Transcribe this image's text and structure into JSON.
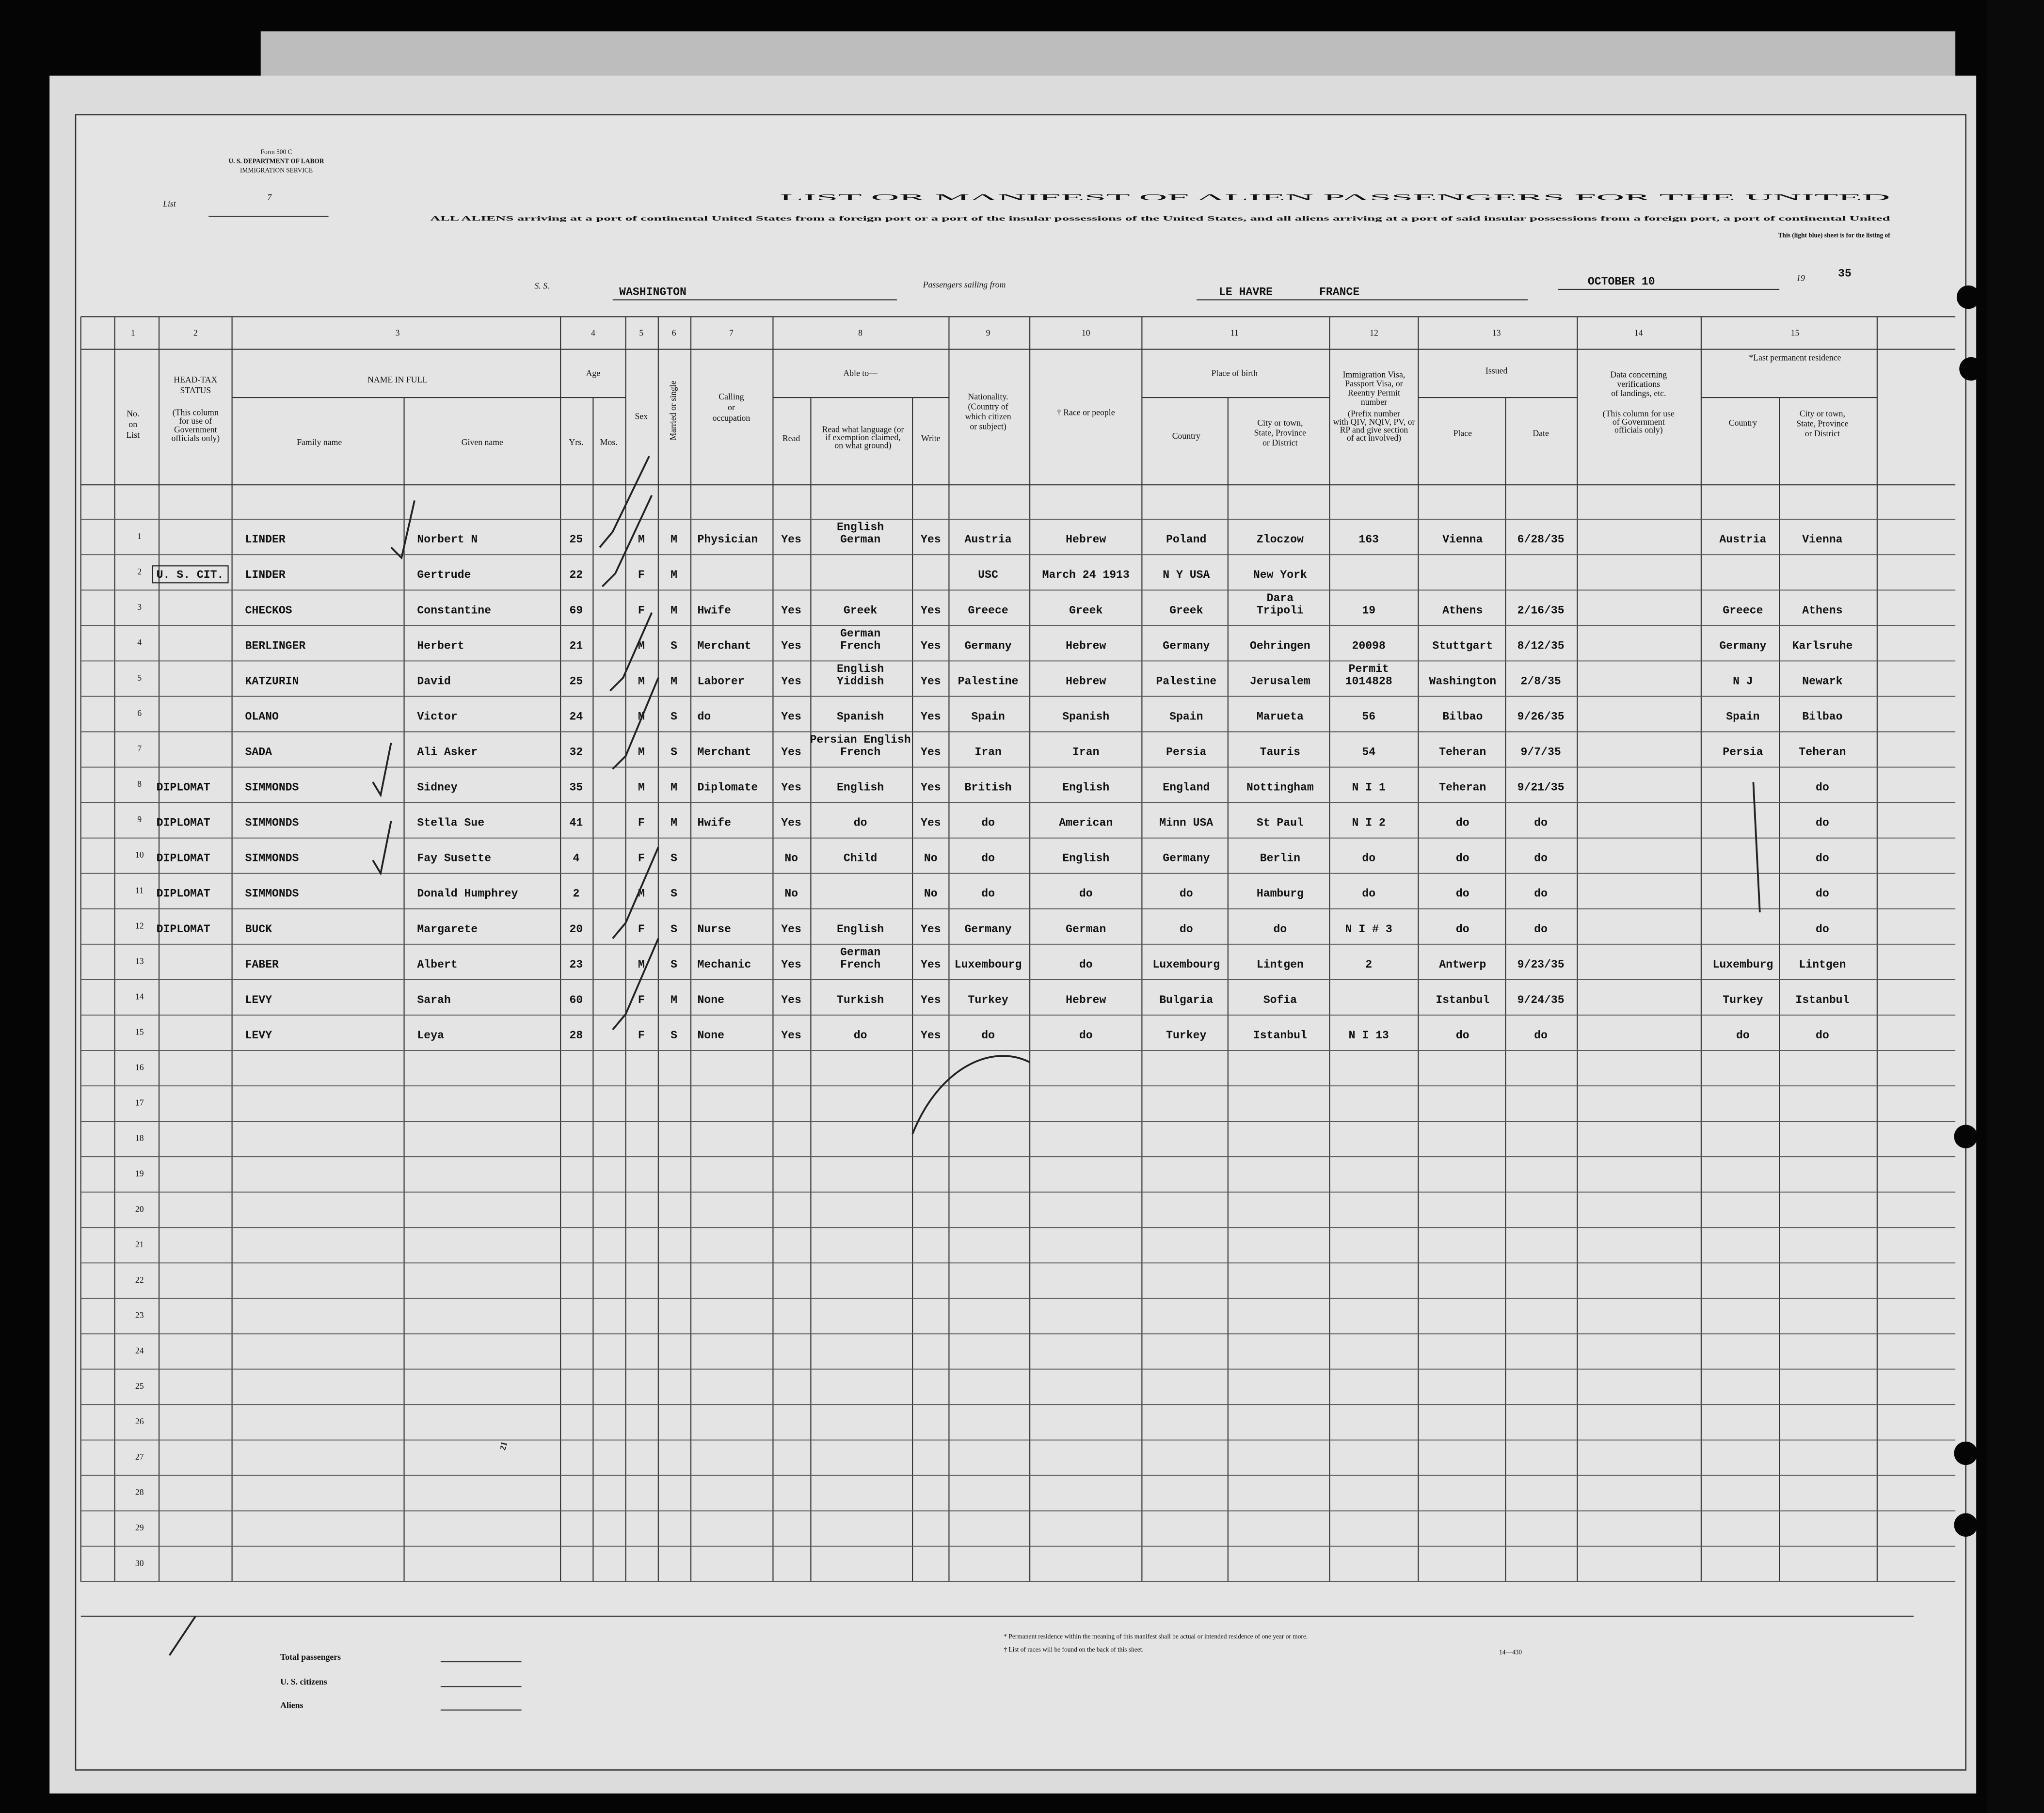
{
  "header": {
    "form_number": "Form 500 C",
    "department": "U. S. DEPARTMENT OF LABOR",
    "service": "IMMIGRATION SERVICE",
    "list_label": "List",
    "list_number": "7",
    "title": "LIST OR MANIFEST OF ALIEN PASSENGERS FOR THE UNITED",
    "subtitle_1": "ALL ALIENS arriving at a port of continental United States from a foreign port or a port of the insular possessions of the United States, and all aliens arriving at a port of said insular possessions from a foreign port, a port of continental United",
    "subtitle_2": "This (light blue) sheet is for the listing of",
    "ss_label": "S. S.",
    "ship": "WASHINGTON",
    "sailing_label": "Passengers sailing from",
    "port": "LE HAVRE",
    "country": "FRANCE",
    "date": "OCTOBER 10",
    "year_prefix": "19",
    "year_suffix": "35"
  },
  "table": {
    "column_numbers": [
      "1",
      "2",
      "3",
      "4",
      "5",
      "6",
      "7",
      "8",
      "9",
      "10",
      "11",
      "12",
      "13",
      "14",
      "15"
    ],
    "column_headers": [
      [
        "No.",
        "on",
        "List"
      ],
      [
        "HEAD-TAX",
        "STATUS"
      ],
      [
        "(This column",
        "for use of",
        "Government",
        "officials only)"
      ],
      [
        "NAME IN FULL"
      ],
      [
        "Family name"
      ],
      [
        "Given name"
      ],
      [
        "Age"
      ],
      [
        "Yrs."
      ],
      [
        "Mos."
      ],
      [
        "Sex"
      ],
      [
        "Married or single"
      ],
      [
        "Calling",
        "or",
        "occupation"
      ],
      [
        "Able to—"
      ],
      [
        "Read"
      ],
      [
        "Read what language (or",
        "if exemption claimed,",
        "on what ground)"
      ],
      [
        "Write"
      ],
      [
        "Nationality.",
        "(Country of",
        "which citizen",
        "or subject)"
      ],
      [
        "† Race or people"
      ],
      [
        "Place of birth"
      ],
      [
        "Country"
      ],
      [
        "City or town,",
        "State, Province",
        "or District"
      ],
      [
        "Immigration Visa,",
        "Passport Visa, or",
        "Reentry Permit",
        "number"
      ],
      [
        "(Prefix number",
        "with QIV, NQIV, PV, or",
        "RP and give section",
        "of act involved)"
      ],
      [
        "Issued"
      ],
      [
        "Place"
      ],
      [
        "Date"
      ],
      [
        "Data concerning",
        "verifications",
        "of landings, etc."
      ],
      [
        "(This column for use",
        "of Government",
        "officials only)"
      ],
      [
        "*Last permanent residence"
      ],
      [
        "Country"
      ],
      [
        "City or town,",
        "State, Province",
        "or District"
      ]
    ],
    "row_numbers": [
      "1",
      "2",
      "3",
      "4",
      "5",
      "6",
      "7",
      "8",
      "9",
      "10",
      "11",
      "12",
      "13",
      "14",
      "15",
      "16",
      "17",
      "18",
      "19",
      "20",
      "21",
      "22",
      "23",
      "24",
      "25",
      "26",
      "27",
      "28",
      "29",
      "30"
    ],
    "rows": [
      {
        "family": "LINDER",
        "given": "Norbert N",
        "yrs": "25",
        "sex": "M",
        "married": "M",
        "occupation": "Physician",
        "read": "Yes",
        "language": [
          "English",
          "German"
        ],
        "write": "Yes",
        "nationality": "Austria",
        "race": "Hebrew",
        "birth_country": "Poland",
        "birth_city": "Zloczow",
        "visa": "163",
        "issued_place": "Vienna",
        "issued_date": "6/28/35",
        "residence_country": "Austria",
        "residence_city": "Vienna"
      },
      {
        "head_tax": "U. S. CIT.",
        "family": "LINDER",
        "given": "Gertrude",
        "yrs": "22",
        "sex": "F",
        "married": "M",
        "nationality": "USC",
        "race": "March 24 1913",
        "birth_country": "N Y USA",
        "birth_city": "New York"
      },
      {
        "family": "CHECKOS",
        "given": "Constantine",
        "yrs": "69",
        "sex": "F",
        "married": "M",
        "occupation": "Hwife",
        "read": "Yes",
        "language": [
          "Greek"
        ],
        "write": "Yes",
        "nationality": "Greece",
        "race": "Greek",
        "birth_country": "Greek",
        "birth_city": [
          "Dara",
          "Tripoli"
        ],
        "visa": "19",
        "issued_place": "Athens",
        "issued_date": "2/16/35",
        "residence_country": "Greece",
        "residence_city": "Athens"
      },
      {
        "family": "BERLINGER",
        "given": "Herbert",
        "yrs": "21",
        "sex": "M",
        "married": "S",
        "occupation": "Merchant",
        "read": "Yes",
        "language": [
          "German",
          "French"
        ],
        "write": "Yes",
        "nationality": "Germany",
        "race": "Hebrew",
        "birth_country": "Germany",
        "birth_city": "Oehringen",
        "visa": "20098",
        "issued_place": "Stuttgart",
        "issued_date": "8/12/35",
        "residence_country": "Germany",
        "residence_city": "Karlsruhe"
      },
      {
        "family": "KATZURIN",
        "given": "David",
        "yrs": "25",
        "sex": "M",
        "married": "M",
        "occupation": "Laborer",
        "read": "Yes",
        "language": [
          "English",
          "Yiddish"
        ],
        "write": "Yes",
        "nationality": "Palestine",
        "race": "Hebrew",
        "birth_country": "Palestine",
        "birth_city": "Jerusalem",
        "visa": [
          "Permit",
          "1014828"
        ],
        "issued_place": "Washington",
        "issued_date": "2/8/35",
        "residence_country": "N J",
        "residence_city": "Newark"
      },
      {
        "family": "OLANO",
        "given": "Victor",
        "yrs": "24",
        "sex": "M",
        "married": "S",
        "occupation": "do",
        "read": "Yes",
        "language": [
          "Spanish"
        ],
        "write": "Yes",
        "nationality": "Spain",
        "race": "Spanish",
        "birth_country": "Spain",
        "birth_city": "Marueta",
        "visa": "56",
        "issued_place": "Bilbao",
        "issued_date": "9/26/35",
        "residence_country": "Spain",
        "residence_city": "Bilbao"
      },
      {
        "family": "SADA",
        "given": "Ali Asker",
        "yrs": "32",
        "sex": "M",
        "married": "S",
        "occupation": "Merchant",
        "read": "Yes",
        "language": [
          "Persian English",
          "French"
        ],
        "write": "Yes",
        "nationality": "Iran",
        "race": "Iran",
        "birth_country": "Persia",
        "birth_city": "Tauris",
        "visa": "54",
        "issued_place": "Teheran",
        "issued_date": "9/7/35",
        "residence_country": "Persia",
        "residence_city": "Teheran"
      },
      {
        "head_tax": "DIPLOMAT",
        "family": "SIMMONDS",
        "given": "Sidney",
        "yrs": "35",
        "sex": "M",
        "married": "M",
        "occupation": "Diplomate",
        "read": "Yes",
        "language": [
          "English"
        ],
        "write": "Yes",
        "nationality": "British",
        "race": "English",
        "birth_country": "England",
        "birth_city": "Nottingham",
        "visa": "N I 1",
        "issued_place": "Teheran",
        "issued_date": "9/21/35",
        "residence_city": "do"
      },
      {
        "head_tax": "DIPLOMAT",
        "family": "SIMMONDS",
        "given": "Stella Sue",
        "yrs": "41",
        "sex": "F",
        "married": "M",
        "occupation": "Hwife",
        "read": "Yes",
        "language": [
          "do"
        ],
        "write": "Yes",
        "nationality": "do",
        "race": "American",
        "birth_country": "Minn USA",
        "birth_city": "St Paul",
        "visa": "N I 2",
        "issued_place": "do",
        "issued_date": "do",
        "residence_city": "do"
      },
      {
        "head_tax": "DIPLOMAT",
        "family": "SIMMONDS",
        "given": "Fay Susette",
        "yrs": "4",
        "sex": "F",
        "married": "S",
        "read": "No",
        "language": [
          "Child"
        ],
        "write": "No",
        "nationality": "do",
        "race": "English",
        "birth_country": "Germany",
        "birth_city": "Berlin",
        "visa": "do",
        "issued_place": "do",
        "issued_date": "do",
        "residence_city": "do"
      },
      {
        "head_tax": "DIPLOMAT",
        "family": "SIMMONDS",
        "given": "Donald Humphrey",
        "yrs": "2",
        "sex": "M",
        "married": "S",
        "read": "No",
        "write": "No",
        "nationality": "do",
        "race": "do",
        "birth_country": "do",
        "birth_city": "Hamburg",
        "visa": "do",
        "issued_place": "do",
        "issued_date": "do",
        "residence_city": "do"
      },
      {
        "head_tax": "DIPLOMAT",
        "family": "BUCK",
        "given": "Margarete",
        "yrs": "20",
        "sex": "F",
        "married": "S",
        "occupation": "Nurse",
        "read": "Yes",
        "language": [
          "English"
        ],
        "write": "Yes",
        "nationality": "Germany",
        "race": "German",
        "birth_country": "do",
        "birth_city": "do",
        "visa": "N I # 3",
        "issued_place": "do",
        "issued_date": "do",
        "residence_city": "do"
      },
      {
        "family": "FABER",
        "given": "Albert",
        "yrs": "23",
        "sex": "M",
        "married": "S",
        "occupation": "Mechanic",
        "read": "Yes",
        "language": [
          "German",
          "French"
        ],
        "write": "Yes",
        "nationality": "Luxembourg",
        "race": "do",
        "birth_country": "Luxembourg",
        "birth_city": "Lintgen",
        "visa": "2",
        "issued_place": "Antwerp",
        "issued_date": "9/23/35",
        "residence_country": "Luxemburg",
        "residence_city": "Lintgen"
      },
      {
        "family": "LEVY",
        "given": "Sarah",
        "yrs": "60",
        "sex": "F",
        "married": "M",
        "occupation": "None",
        "read": "Yes",
        "language": [
          "Turkish"
        ],
        "write": "Yes",
        "nationality": "Turkey",
        "race": "Hebrew",
        "birth_country": "Bulgaria",
        "birth_city": "Sofia",
        "issued_place": "Istanbul",
        "issued_date": "9/24/35",
        "residence_country": "Turkey",
        "residence_city": "Istanbul"
      },
      {
        "family": "LEVY",
        "given": "Leya",
        "yrs": "28",
        "sex": "F",
        "married": "S",
        "occupation": "None",
        "read": "Yes",
        "language": [
          "do"
        ],
        "write": "Yes",
        "nationality": "do",
        "race": "do",
        "birth_country": "Turkey",
        "birth_city": "Istanbul",
        "visa": "N I 13",
        "issued_place": "do",
        "issued_date": "do",
        "residence_country": "do",
        "residence_city": "do"
      }
    ]
  },
  "footer": {
    "total_passengers": "Total passengers",
    "us_citizens": "U. S. citizens",
    "aliens": "Aliens",
    "note_1": "* Permanent residence within the meaning of this manifest shall be actual or intended residence of one year or more.",
    "note_2": "† List of races will be found on the back of this sheet.",
    "form_code": "14—430",
    "sheet_note": "21"
  }
}
